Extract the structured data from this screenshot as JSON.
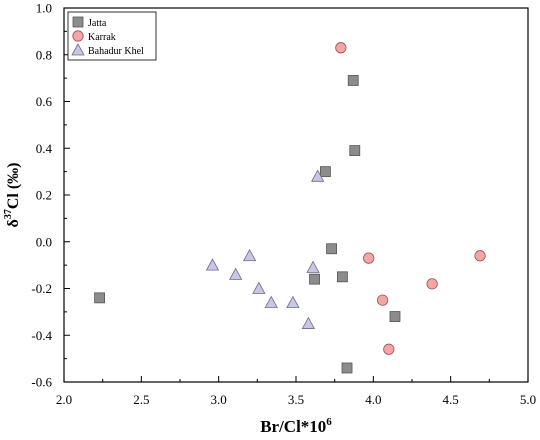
{
  "chart_data": {
    "type": "scatter",
    "xlabel": "Br/Cl*10",
    "xlabel_sup": "6",
    "ylabel_prefix": "δ",
    "ylabel_sup": "37",
    "ylabel_rest": "Cl (‰)",
    "xlim": [
      2.0,
      5.0
    ],
    "ylim": [
      -0.6,
      1.0
    ],
    "xticks": [
      2.0,
      2.5,
      3.0,
      3.5,
      4.0,
      4.5,
      5.0
    ],
    "xtick_labels": [
      "2.0",
      "2.5",
      "3.0",
      "3.5",
      "4.0",
      "4.5",
      "5.0"
    ],
    "yticks": [
      -0.6,
      -0.4,
      -0.2,
      0.0,
      0.2,
      0.4,
      0.6,
      0.8,
      1.0
    ],
    "ytick_labels": [
      "-0.6",
      "-0.4",
      "-0.2",
      "0.0",
      "0.2",
      "0.4",
      "0.6",
      "0.8",
      "1.0"
    ],
    "grid": false,
    "legend_position": "top-left",
    "series": [
      {
        "name": "Jatta",
        "marker": "square",
        "color": "#8c8c8c",
        "points": [
          {
            "x": 2.23,
            "y": -0.24
          },
          {
            "x": 3.87,
            "y": 0.69
          },
          {
            "x": 3.88,
            "y": 0.39
          },
          {
            "x": 3.69,
            "y": 0.3
          },
          {
            "x": 3.73,
            "y": -0.03
          },
          {
            "x": 3.8,
            "y": -0.15
          },
          {
            "x": 3.62,
            "y": -0.16
          },
          {
            "x": 4.14,
            "y": -0.32
          },
          {
            "x": 3.83,
            "y": -0.54
          }
        ]
      },
      {
        "name": "Karrak",
        "marker": "circle",
        "color": "#f4a6a6",
        "points": [
          {
            "x": 3.79,
            "y": 0.83
          },
          {
            "x": 3.97,
            "y": -0.07
          },
          {
            "x": 4.69,
            "y": -0.06
          },
          {
            "x": 4.38,
            "y": -0.18
          },
          {
            "x": 4.06,
            "y": -0.25
          },
          {
            "x": 4.1,
            "y": -0.46
          }
        ]
      },
      {
        "name": "Bahadur Khel",
        "marker": "triangle",
        "color": "#c7c6e6",
        "points": [
          {
            "x": 3.64,
            "y": 0.28
          },
          {
            "x": 2.96,
            "y": -0.1
          },
          {
            "x": 3.2,
            "y": -0.06
          },
          {
            "x": 3.11,
            "y": -0.14
          },
          {
            "x": 3.61,
            "y": -0.11
          },
          {
            "x": 3.26,
            "y": -0.2
          },
          {
            "x": 3.34,
            "y": -0.26
          },
          {
            "x": 3.48,
            "y": -0.26
          },
          {
            "x": 3.58,
            "y": -0.35
          }
        ]
      }
    ]
  }
}
